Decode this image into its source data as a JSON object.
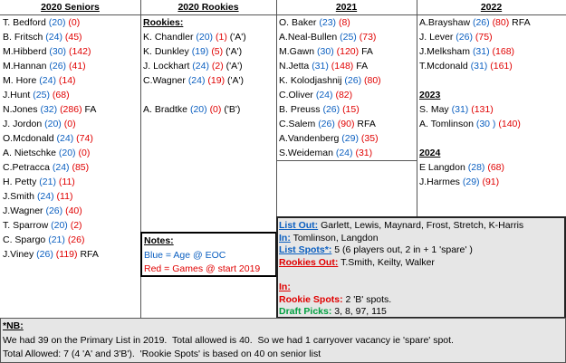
{
  "columns": [
    {
      "header": "2020 Seniors",
      "rows": [
        [
          [
            "T. Bedford",
            "name"
          ],
          [
            "(20)",
            "age"
          ],
          [
            "(0)",
            "games"
          ]
        ],
        [
          [
            "B. Fritsch",
            "name"
          ],
          [
            "(24)",
            "age"
          ],
          [
            "(45)",
            "games"
          ]
        ],
        [
          [
            "M.Hibberd",
            "name"
          ],
          [
            "(30)",
            "age"
          ],
          [
            "(142)",
            "games"
          ]
        ],
        [
          [
            "M.Hannan",
            "name"
          ],
          [
            "(26)",
            "age"
          ],
          [
            "(41)",
            "games"
          ]
        ],
        [
          [
            "M. Hore",
            "name"
          ],
          [
            "(24)",
            "age"
          ],
          [
            "(14)",
            "games"
          ]
        ],
        [
          [
            "J.Hunt",
            "name"
          ],
          [
            "(25)",
            "age"
          ],
          [
            "(68)",
            "games"
          ]
        ],
        [
          [
            "N.Jones",
            "name"
          ],
          [
            "(32)",
            "age"
          ],
          [
            "(286)",
            "games"
          ],
          [
            "FA",
            "tag"
          ]
        ],
        [
          [
            "J. Jordon",
            "name"
          ],
          [
            "(20)",
            "age"
          ],
          [
            "(0)",
            "games"
          ]
        ],
        [
          [
            "O.Mcdonald",
            "name"
          ],
          [
            "(24)",
            "age"
          ],
          [
            "(74)",
            "games"
          ]
        ],
        [
          [
            "A. Nietschke",
            "name"
          ],
          [
            "(20)",
            "age"
          ],
          [
            "(0)",
            "games"
          ]
        ],
        [
          [
            "C.Petracca",
            "name"
          ],
          [
            "(24)",
            "age"
          ],
          [
            "(85)",
            "games"
          ]
        ],
        [
          [
            "H. Petty",
            "name"
          ],
          [
            "(21)",
            "age"
          ],
          [
            "(11)",
            "games"
          ]
        ],
        [
          [
            "J.Smith",
            "name"
          ],
          [
            "(24)",
            "age"
          ],
          [
            "(11)",
            "games"
          ]
        ],
        [
          [
            "J.Wagner",
            "name"
          ],
          [
            "(26)",
            "age"
          ],
          [
            "(40)",
            "games"
          ]
        ],
        [
          [
            "T. Sparrow",
            "name"
          ],
          [
            "(20)",
            "age"
          ],
          [
            "(2)",
            "games"
          ]
        ],
        [
          [
            "C. Spargo",
            "name"
          ],
          [
            "(21)",
            "age"
          ],
          [
            "(26)",
            "games"
          ]
        ],
        [
          [
            "J.Viney",
            "name"
          ],
          [
            "(26)",
            "age"
          ],
          [
            "(119)",
            "games"
          ],
          [
            "RFA",
            "tag"
          ]
        ]
      ]
    },
    {
      "header": "2020 Rookies",
      "rows": [
        [
          [
            "Rookies:",
            "subhead"
          ]
        ],
        [
          [
            "K. Chandler",
            "name"
          ],
          [
            "(20)",
            "age"
          ],
          [
            "(1)",
            "games"
          ],
          [
            "('A')",
            "tag"
          ]
        ],
        [
          [
            "K. Dunkley",
            "name"
          ],
          [
            "(19)",
            "age"
          ],
          [
            "(5)",
            "games"
          ],
          [
            "('A')",
            "tag"
          ]
        ],
        [
          [
            "J. Lockhart",
            "name"
          ],
          [
            "(24)",
            "age"
          ],
          [
            "(2)",
            "games"
          ],
          [
            "('A')",
            "tag"
          ]
        ],
        [
          [
            "C.Wagner",
            "name"
          ],
          [
            "(24)",
            "age"
          ],
          [
            "(19)",
            "games"
          ],
          [
            "('A')",
            "tag"
          ]
        ],
        null,
        [
          [
            "A. Bradtke",
            "name"
          ],
          [
            "(20)",
            "age"
          ],
          [
            "(0)",
            "games"
          ],
          [
            "('B')",
            "tag"
          ]
        ]
      ]
    },
    {
      "header": "2021",
      "rows": [
        [
          [
            "O. Baker",
            "name"
          ],
          [
            "(23)",
            "age"
          ],
          [
            "(8)",
            "games"
          ]
        ],
        [
          [
            "A.Neal-Bullen",
            "name"
          ],
          [
            "(25)",
            "age"
          ],
          [
            "(73)",
            "games"
          ]
        ],
        [
          [
            "M.Gawn",
            "name"
          ],
          [
            "(30)",
            "age"
          ],
          [
            "(120)",
            "games"
          ],
          [
            "FA",
            "tag"
          ]
        ],
        [
          [
            "N.Jetta",
            "name"
          ],
          [
            "(31)",
            "age"
          ],
          [
            "(148)",
            "games"
          ],
          [
            "FA",
            "tag"
          ]
        ],
        [
          [
            "K. Kolodjashnij",
            "name"
          ],
          [
            "(26)",
            "age"
          ],
          [
            "(80)",
            "games"
          ]
        ],
        [
          [
            "C.Oliver",
            "name"
          ],
          [
            "(24)",
            "age"
          ],
          [
            "(82)",
            "games"
          ]
        ],
        [
          [
            "B. Preuss",
            "name"
          ],
          [
            "(26)",
            "age"
          ],
          [
            "(15)",
            "games"
          ]
        ],
        [
          [
            "C.Salem",
            "name"
          ],
          [
            "(26)",
            "age"
          ],
          [
            "(90)",
            "games"
          ],
          [
            "RFA",
            "tag"
          ]
        ],
        [
          [
            "A.Vandenberg",
            "name"
          ],
          [
            "(29)",
            "age"
          ],
          [
            "(35)",
            "games"
          ]
        ],
        [
          [
            "S.Weideman",
            "name"
          ],
          [
            "(24)",
            "age"
          ],
          [
            "(31)",
            "games"
          ]
        ]
      ]
    },
    {
      "header": "2022",
      "rows": [
        [
          [
            "A.Brayshaw",
            "name"
          ],
          [
            "(26)",
            "age"
          ],
          [
            "(80)",
            "games"
          ],
          [
            "RFA",
            "tag"
          ]
        ],
        [
          [
            "J. Lever",
            "name"
          ],
          [
            "(26)",
            "age"
          ],
          [
            "(75)",
            "games"
          ]
        ],
        [
          [
            "J.Melksham",
            "name"
          ],
          [
            "(31)",
            "age"
          ],
          [
            "(168)",
            "games"
          ]
        ],
        [
          [
            "T.Mcdonald",
            "name"
          ],
          [
            "(31)",
            "age"
          ],
          [
            "(161)",
            "games"
          ]
        ],
        null,
        [
          [
            "2023",
            "subhead"
          ]
        ],
        [
          [
            "S. May",
            "name"
          ],
          [
            "(31)",
            "age"
          ],
          [
            "(131)",
            "games"
          ]
        ],
        [
          [
            "A. Tomlinson",
            "name"
          ],
          [
            "(30 )",
            "age"
          ],
          [
            "(140)",
            "games"
          ]
        ],
        null,
        [
          [
            "2024",
            "subhead"
          ]
        ],
        [
          [
            "E Langdon",
            "name"
          ],
          [
            "(28)",
            "age"
          ],
          [
            "(68)",
            "games"
          ]
        ],
        [
          [
            "J.Harmes",
            "name"
          ],
          [
            "(29)",
            "age"
          ],
          [
            "(91)",
            "games"
          ]
        ]
      ]
    }
  ],
  "notes": [
    [
      [
        "Notes:",
        "subhead"
      ]
    ],
    [
      [
        "Blue = Age @ EOC",
        "age"
      ]
    ],
    [
      [
        "Red = Games @ start 2019",
        "games"
      ]
    ]
  ],
  "list_changes": [
    [
      [
        "List Out:",
        "blue-label"
      ],
      [
        "Garlett, Lewis, Maynard, Frost, Stretch, K-Harris",
        "tag"
      ]
    ],
    [
      [
        "In:",
        "blue-label"
      ],
      [
        "Tomlinson, Langdon",
        "tag"
      ]
    ],
    [
      [
        "List Spots*:",
        "blue-label"
      ],
      [
        "5 (6 players out, 2 in + 1 'spare' )",
        "tag"
      ]
    ],
    [
      [
        "Rookies Out:",
        "red-label"
      ],
      [
        "T.Smith, Keilty, Walker",
        "tag"
      ]
    ],
    null,
    [
      [
        "In:",
        "red-label"
      ]
    ],
    [
      [
        "Rookie Spots:",
        "red-bold"
      ],
      [
        "2 'B' spots.",
        "tag"
      ]
    ],
    [
      [
        "Draft Picks:",
        "green-bold"
      ],
      [
        "3, 8, 97, 115",
        "tag"
      ]
    ]
  ],
  "nb": [
    [
      [
        "*NB:",
        "subhead"
      ]
    ],
    [
      [
        "We had 39 on the Primary List in 2019.  Total allowed is 40.  So we had 1 carryover vacancy ie 'spare' spot.",
        "tag"
      ]
    ],
    [
      [
        "Total Allowed: 7 (4 'A' and 3'B').  'Rookie Spots' is based on 40 on senior list",
        "tag"
      ]
    ]
  ]
}
